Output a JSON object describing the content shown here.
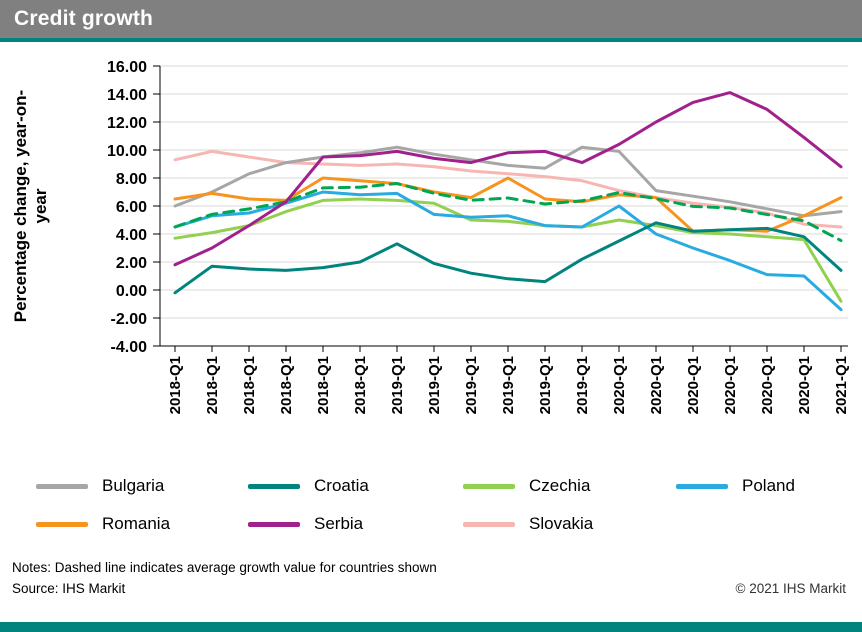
{
  "header": {
    "title": "Credit growth"
  },
  "y_axis": {
    "label": "Percentage change, year-on-year",
    "lines": [
      "Percentage change, year-on-",
      "year"
    ]
  },
  "chart_data": {
    "type": "line",
    "title": "Credit growth",
    "ylabel": "Percentage change, year-on-year",
    "ylim": [
      -4,
      16
    ],
    "grid": true,
    "legend_position": "bottom",
    "y_ticks": [
      16,
      14,
      12,
      10,
      8,
      6,
      4,
      2,
      0,
      -2,
      -4
    ],
    "y_tick_labels": [
      "16.00",
      "14.00",
      "12.00",
      "10.00",
      "8.00",
      "6.00",
      "4.00",
      "2.00",
      "0.00",
      "-2.00",
      "-4.00"
    ],
    "x_labels": [
      "2018-Q1",
      "2018-Q1",
      "2018-Q1",
      "2018-Q1",
      "2018-Q1",
      "2018-Q1",
      "2019-Q1",
      "2019-Q1",
      "2019-Q1",
      "2019-Q1",
      "2019-Q1",
      "2019-Q1",
      "2020-Q1",
      "2020-Q1",
      "2020-Q1",
      "2020-Q1",
      "2020-Q1",
      "2020-Q1",
      "2021-Q1"
    ],
    "series": [
      {
        "name": "Slovakia",
        "color": "#f7b6b2",
        "dashed": false,
        "values": [
          9.3,
          9.9,
          9.5,
          9.1,
          9.0,
          8.9,
          9.0,
          8.8,
          8.5,
          8.3,
          8.1,
          7.8,
          7.1,
          6.6,
          6.2,
          5.9,
          5.5,
          4.7,
          4.5
        ]
      },
      {
        "name": "Bulgaria",
        "color": "#a6a6a6",
        "dashed": false,
        "values": [
          6.0,
          7.0,
          8.3,
          9.1,
          9.5,
          9.8,
          10.2,
          9.7,
          9.3,
          8.9,
          8.7,
          10.2,
          9.9,
          7.1,
          6.7,
          6.3,
          5.8,
          5.3,
          5.6
        ]
      },
      {
        "name": "Romania",
        "color": "#f7941d",
        "dashed": false,
        "values": [
          6.5,
          6.9,
          6.5,
          6.4,
          8.0,
          7.8,
          7.6,
          7.0,
          6.6,
          8.0,
          6.5,
          6.3,
          6.8,
          6.6,
          4.2,
          4.3,
          4.2,
          5.3,
          6.6
        ]
      },
      {
        "name": "Czechia",
        "color": "#92d050",
        "dashed": false,
        "values": [
          3.7,
          4.1,
          4.6,
          5.6,
          6.4,
          6.5,
          6.4,
          6.2,
          5.0,
          4.9,
          4.6,
          4.5,
          5.0,
          4.6,
          4.1,
          4.0,
          3.8,
          3.6,
          -0.8
        ]
      },
      {
        "name": "Poland",
        "color": "#29abe2",
        "dashed": false,
        "values": [
          4.5,
          5.3,
          5.5,
          6.2,
          7.0,
          6.8,
          6.9,
          5.4,
          5.2,
          5.3,
          4.6,
          4.5,
          6.0,
          4.0,
          3.0,
          2.1,
          1.1,
          1.0,
          -1.4
        ]
      },
      {
        "name": "Croatia",
        "color": "#00847d",
        "dashed": false,
        "values": [
          -0.2,
          1.7,
          1.5,
          1.4,
          1.6,
          2.0,
          3.3,
          1.9,
          1.2,
          0.8,
          0.6,
          2.2,
          3.5,
          4.8,
          4.2,
          4.3,
          4.4,
          3.8,
          1.4
        ]
      },
      {
        "name": "Average",
        "color": "#00a651",
        "dashed": true,
        "values": [
          4.51,
          5.41,
          5.79,
          6.3,
          7.29,
          7.34,
          7.61,
          6.91,
          6.41,
          6.57,
          6.14,
          6.37,
          6.96,
          6.53,
          5.97,
          5.86,
          5.39,
          4.94,
          3.53
        ]
      },
      {
        "name": "Serbia",
        "color": "#a0218c",
        "dashed": false,
        "values": [
          1.8,
          3.0,
          4.6,
          6.3,
          9.5,
          9.6,
          9.9,
          9.4,
          9.1,
          9.8,
          9.9,
          9.1,
          10.4,
          12.0,
          13.4,
          14.1,
          12.9,
          10.9,
          8.8
        ]
      }
    ]
  },
  "legend": {
    "items": [
      {
        "label": "Bulgaria",
        "color": "#a6a6a6"
      },
      {
        "label": "Croatia",
        "color": "#00847d"
      },
      {
        "label": "Czechia",
        "color": "#92d050"
      },
      {
        "label": "Poland",
        "color": "#29abe2"
      },
      {
        "label": "Romania",
        "color": "#f7941d"
      },
      {
        "label": "Serbia",
        "color": "#a0218c"
      },
      {
        "label": "Slovakia",
        "color": "#f7b6b2"
      }
    ]
  },
  "notes": {
    "line1": "Notes: Dashed line indicates average growth value for countries shown",
    "line2": "Source: IHS Markit"
  },
  "copyright": "© 2021 IHS Markit",
  "colors": {
    "accent_teal": "#00847d",
    "header_gray": "#808080",
    "gridline": "#d9d9d9",
    "axis": "#000000"
  }
}
